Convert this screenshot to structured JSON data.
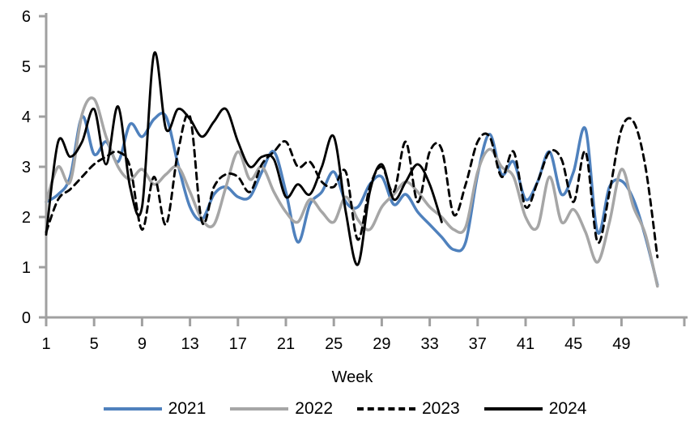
{
  "chart_data": {
    "type": "line",
    "title": "",
    "xlabel": "Week",
    "ylabel": "",
    "ylim": [
      0,
      6
    ],
    "y_ticks": [
      0,
      1,
      2,
      3,
      4,
      5,
      6
    ],
    "x_ticks": [
      1,
      5,
      9,
      13,
      17,
      21,
      25,
      29,
      33,
      37,
      41,
      45,
      49
    ],
    "grid": "off",
    "legend_position": "bottom",
    "axis_color": "#a0a0a0",
    "x_weeks_max": 52,
    "series": [
      {
        "name": "2021",
        "color": "#4f81bd",
        "style": "solid",
        "start_week": 1,
        "values": [
          2.3,
          2.45,
          2.8,
          4.0,
          3.25,
          3.5,
          3.1,
          3.85,
          3.6,
          3.95,
          4.0,
          3.05,
          2.2,
          1.95,
          2.45,
          2.6,
          2.4,
          2.4,
          2.9,
          3.3,
          2.5,
          1.5,
          2.25,
          2.5,
          2.9,
          2.3,
          2.2,
          2.65,
          2.8,
          2.25,
          2.45,
          2.1,
          1.85,
          1.6,
          1.35,
          1.5,
          2.85,
          3.65,
          2.85,
          3.1,
          2.35,
          2.7,
          3.3,
          2.45,
          2.9,
          3.75,
          1.7,
          2.6,
          2.72,
          2.35,
          1.6,
          0.65
        ]
      },
      {
        "name": "2022",
        "color": "#a6a6a6",
        "style": "solid",
        "start_week": 1,
        "values": [
          2.3,
          3.0,
          2.7,
          4.05,
          4.35,
          3.6,
          3.0,
          2.75,
          2.95,
          2.65,
          2.85,
          3.0,
          2.5,
          1.95,
          1.85,
          2.6,
          3.3,
          2.75,
          3.0,
          2.5,
          2.1,
          1.9,
          2.35,
          2.1,
          1.9,
          2.4,
          1.95,
          1.75,
          2.2,
          2.45,
          2.7,
          2.5,
          2.2,
          2.0,
          1.75,
          1.8,
          2.9,
          3.35,
          3.0,
          2.8,
          2.0,
          1.8,
          2.8,
          1.9,
          2.15,
          1.7,
          1.1,
          1.9,
          2.95,
          2.2,
          1.65,
          0.62
        ]
      },
      {
        "name": "2023",
        "color": "#000000",
        "style": "dashed",
        "start_week": 1,
        "values": [
          1.7,
          2.35,
          2.55,
          2.8,
          3.05,
          3.2,
          3.3,
          3.0,
          1.75,
          2.8,
          1.85,
          3.3,
          4.0,
          1.9,
          2.6,
          2.85,
          2.8,
          2.5,
          3.05,
          3.3,
          3.5,
          3.0,
          3.1,
          2.7,
          2.6,
          2.9,
          1.55,
          2.6,
          3.0,
          2.5,
          3.5,
          2.3,
          3.3,
          3.35,
          2.05,
          2.65,
          3.5,
          3.6,
          2.8,
          3.3,
          2.2,
          2.7,
          3.3,
          3.15,
          2.3,
          3.3,
          1.5,
          2.5,
          3.75,
          3.9,
          3.0,
          1.2
        ]
      },
      {
        "name": "2024",
        "color": "#000000",
        "style": "solid",
        "start_week": 1,
        "values": [
          1.65,
          3.5,
          3.2,
          3.5,
          4.15,
          3.05,
          4.2,
          2.6,
          2.2,
          5.25,
          3.75,
          4.15,
          3.95,
          3.6,
          3.9,
          4.15,
          3.5,
          3.0,
          3.2,
          3.15,
          2.4,
          2.65,
          2.45,
          3.0,
          3.6,
          2.1,
          1.05,
          2.5,
          3.05,
          2.35,
          2.7,
          3.05,
          2.65,
          1.9
        ]
      }
    ]
  }
}
